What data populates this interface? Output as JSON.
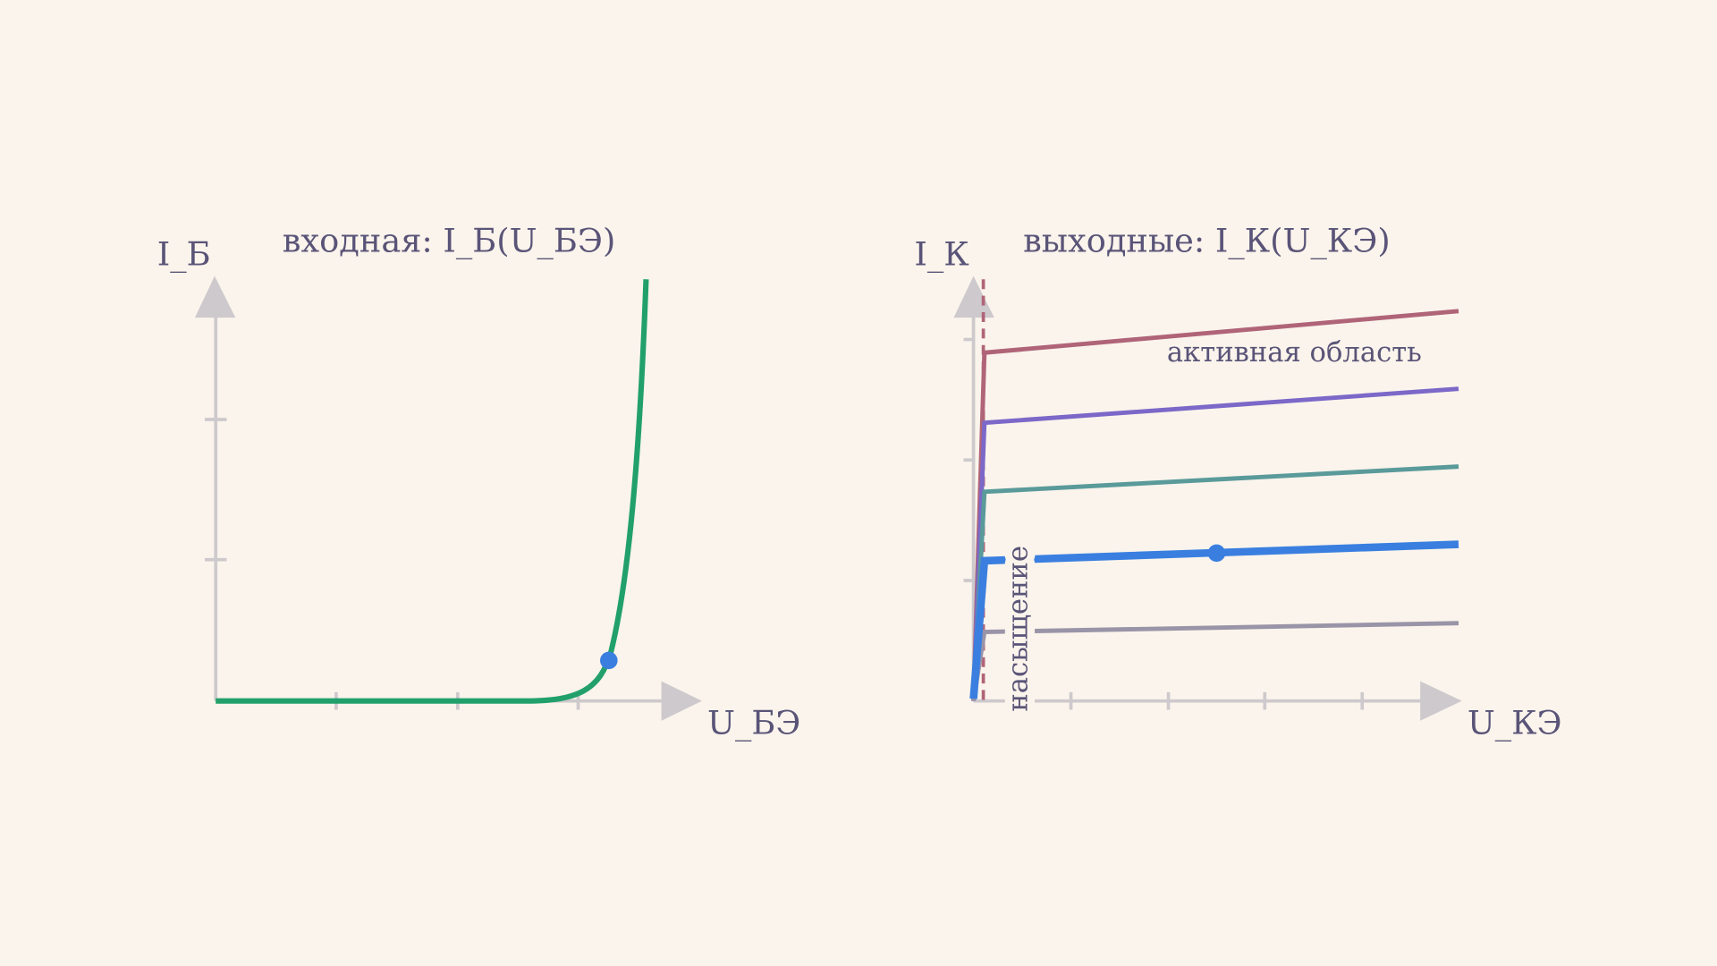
{
  "input_plot": {
    "title": "входная: I_Б(U_БЭ)",
    "y_label": "I_Б",
    "x_label": "U_БЭ"
  },
  "output_plot": {
    "title": "выходные: I_К(U_КЭ)",
    "y_label": "I_К",
    "x_label": "U_КЭ",
    "active_label": "активная область",
    "saturation_label": "насыщение"
  }
}
